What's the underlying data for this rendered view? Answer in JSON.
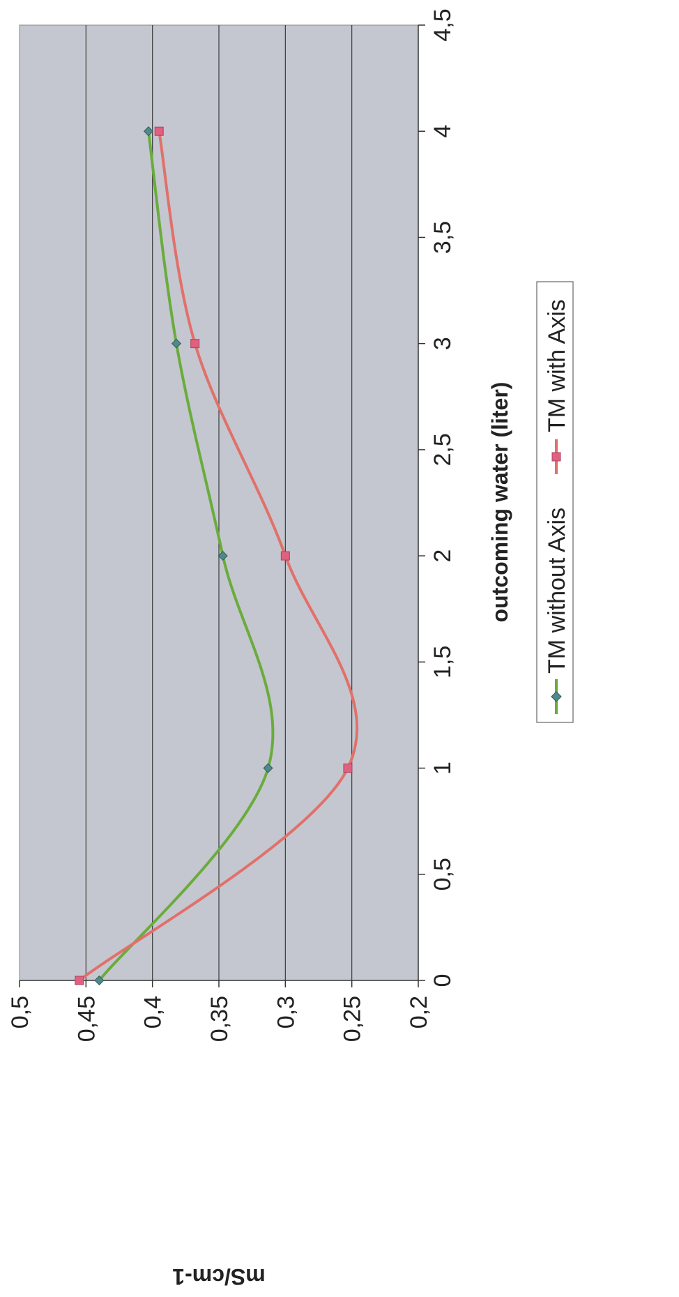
{
  "chart_data": {
    "type": "line",
    "orientation": "rotated-90-ccw",
    "xlabel": "outcoming water (liter)",
    "ylabel": "mS/cm-1",
    "xlim": [
      0,
      4.5
    ],
    "ylim": [
      0.2,
      0.5
    ],
    "x_ticks": [
      "0",
      "0,5",
      "1",
      "1,5",
      "2",
      "2,5",
      "3",
      "3,5",
      "4",
      "4,5"
    ],
    "y_ticks": [
      "0,2",
      "0,25",
      "0,3",
      "0,35",
      "0,4",
      "0,45",
      "0,5"
    ],
    "grid": "horizontal major gridlines",
    "smooth": true,
    "plot_background": "#c4c7cf",
    "legend_position": "bottom",
    "series": [
      {
        "name": "TM without Axis",
        "color": "#6aac3c",
        "marker": "diamond",
        "marker_color": "#4f8a8b",
        "x": [
          0,
          1,
          2,
          3,
          4
        ],
        "y": [
          0.44,
          0.313,
          0.347,
          0.382,
          0.403
        ]
      },
      {
        "name": "TM with Axis",
        "color": "#e2706a",
        "marker": "square",
        "marker_color": "#e06080",
        "x": [
          0,
          1,
          2,
          3,
          4
        ],
        "y": [
          0.455,
          0.253,
          0.3,
          0.368,
          0.395
        ]
      }
    ]
  }
}
